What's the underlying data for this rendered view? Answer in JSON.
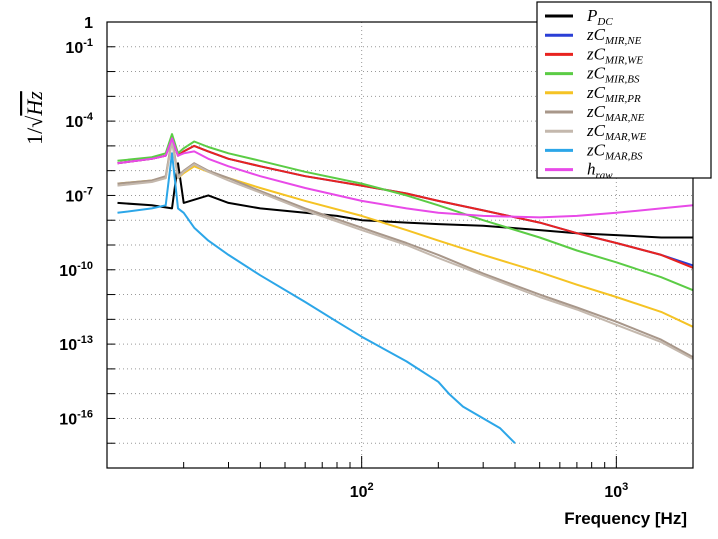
{
  "chart_data": {
    "type": "line",
    "title": "",
    "xlabel": "Frequency [Hz]",
    "ylabel": "1/√Hz",
    "x_scale": "log",
    "y_scale": "log",
    "xlim": [
      10,
      2000
    ],
    "ylim": [
      1e-18,
      1
    ],
    "grid": true,
    "legend_position": "top-right",
    "x_ticks": [
      {
        "value": 100,
        "base": "10",
        "exp": "2"
      },
      {
        "value": 1000,
        "base": "10",
        "exp": "3"
      }
    ],
    "y_ticks": [
      {
        "value": 1,
        "base": "1",
        "exp": ""
      },
      {
        "value": 0.1,
        "base": "10",
        "exp": "-1"
      },
      {
        "value": 0.0001,
        "base": "10",
        "exp": "-4"
      },
      {
        "value": 1e-07,
        "base": "10",
        "exp": "-7"
      },
      {
        "value": 1e-10,
        "base": "10",
        "exp": "-10"
      },
      {
        "value": 1e-13,
        "base": "10",
        "exp": "-13"
      },
      {
        "value": 1e-16,
        "base": "10",
        "exp": "-16"
      }
    ],
    "series": [
      {
        "name": "P_DC",
        "label_main": "P",
        "label_sub": "DC",
        "prefix": "",
        "color": "#000000",
        "x": [
          11,
          15,
          18,
          19,
          20,
          25,
          30,
          40,
          60,
          80,
          100,
          150,
          200,
          300,
          500,
          700,
          1000,
          1500,
          2000
        ],
        "y": [
          5e-08,
          4e-08,
          3e-08,
          2e-06,
          5e-08,
          1e-07,
          5e-08,
          3e-08,
          2e-08,
          1.5e-08,
          1e-08,
          8e-09,
          7e-09,
          6e-09,
          4e-09,
          3e-09,
          2.5e-09,
          2e-09,
          2e-09
        ]
      },
      {
        "name": "zC_MIR,NE",
        "label_main": "C",
        "label_sub": "MIR,NE",
        "prefix": "z",
        "color": "#2a3fd6",
        "x": [
          11,
          15,
          17,
          18,
          19,
          20,
          22,
          25,
          30,
          40,
          60,
          100,
          150,
          200,
          300,
          500,
          700,
          1000,
          1500,
          2000
        ],
        "y": [
          2e-06,
          3e-06,
          4e-06,
          2e-05,
          4e-06,
          6e-06,
          1e-05,
          6e-06,
          3e-06,
          1.5e-06,
          6e-07,
          2.5e-07,
          1.2e-07,
          6e-08,
          2.5e-08,
          8e-09,
          3e-09,
          1.2e-09,
          4e-10,
          1.5e-10
        ]
      },
      {
        "name": "zC_MIR,WE",
        "label_main": "C",
        "label_sub": "MIR,WE",
        "prefix": "z",
        "color": "#e8231f",
        "x": [
          11,
          15,
          17,
          18,
          19,
          20,
          22,
          25,
          30,
          40,
          60,
          100,
          150,
          200,
          300,
          500,
          700,
          1000,
          1500,
          2000
        ],
        "y": [
          2e-06,
          3e-06,
          4e-06,
          2e-05,
          4e-06,
          6e-06,
          1e-05,
          6e-06,
          3e-06,
          1.5e-06,
          6e-07,
          2.5e-07,
          1.2e-07,
          6e-08,
          2.5e-08,
          8e-09,
          3e-09,
          1.2e-09,
          4e-10,
          1.2e-10
        ]
      },
      {
        "name": "zC_MIR,BS",
        "label_main": "C",
        "label_sub": "MIR,BS",
        "prefix": "z",
        "color": "#5bcc45",
        "x": [
          11,
          15,
          17,
          18,
          19,
          20,
          22,
          25,
          30,
          40,
          60,
          100,
          150,
          200,
          300,
          500,
          700,
          1000,
          1500,
          2000
        ],
        "y": [
          2.5e-06,
          3.5e-06,
          5e-06,
          3e-05,
          5e-06,
          8e-06,
          1.5e-05,
          9e-06,
          5e-06,
          2.5e-06,
          9e-07,
          3e-07,
          1e-07,
          4e-08,
          1e-08,
          2e-09,
          6e-10,
          2e-10,
          5e-11,
          1.5e-11
        ]
      },
      {
        "name": "zC_MIR,PR",
        "label_main": "C",
        "label_sub": "MIR,PR",
        "prefix": "z",
        "color": "#f5c324",
        "x": [
          11,
          15,
          17,
          18,
          19,
          20,
          22,
          25,
          30,
          40,
          60,
          100,
          150,
          200,
          300,
          500,
          700,
          1000,
          1500,
          2000
        ],
        "y": [
          3e-07,
          4e-07,
          5e-07,
          2e-05,
          5e-07,
          8e-07,
          1.5e-06,
          9e-07,
          5e-07,
          2e-07,
          6e-08,
          1.5e-08,
          4e-09,
          1.5e-09,
          4e-10,
          8e-11,
          2.5e-11,
          8e-12,
          2e-12,
          5e-13
        ]
      },
      {
        "name": "zC_MAR,NE",
        "label_main": "C",
        "label_sub": "MAR,NE",
        "prefix": "z",
        "color": "#a8978a",
        "x": [
          11,
          15,
          17,
          18,
          19,
          20,
          22,
          25,
          30,
          40,
          60,
          100,
          150,
          200,
          300,
          500,
          700,
          1000,
          1500,
          2000
        ],
        "y": [
          3e-07,
          4e-07,
          6e-07,
          2e-05,
          6e-07,
          1e-06,
          2e-06,
          1e-06,
          5e-07,
          1.5e-07,
          3e-08,
          5e-09,
          1.2e-09,
          4e-10,
          7e-11,
          1e-11,
          3e-12,
          8e-13,
          1.5e-13,
          3e-14
        ]
      },
      {
        "name": "zC_MAR,WE",
        "label_main": "C",
        "label_sub": "MAR,WE",
        "prefix": "z",
        "color": "#c4b8ad",
        "x": [
          11,
          15,
          17,
          18,
          19,
          20,
          22,
          25,
          30,
          40,
          60,
          100,
          150,
          200,
          300,
          500,
          700,
          1000,
          1500,
          2000
        ],
        "y": [
          2.5e-07,
          3.5e-07,
          5e-07,
          1.5e-05,
          5e-07,
          9e-07,
          1.8e-06,
          9e-07,
          4e-07,
          1.3e-07,
          2.5e-08,
          4e-09,
          1e-09,
          3e-10,
          6e-11,
          8e-12,
          2.5e-12,
          6e-13,
          1.2e-13,
          2.5e-14
        ]
      },
      {
        "name": "zC_MAR,BS",
        "label_main": "C",
        "label_sub": "MAR,BS",
        "prefix": "z",
        "color": "#2ca6e8",
        "x": [
          11,
          15,
          17,
          18,
          19,
          20,
          22,
          25,
          30,
          40,
          60,
          80,
          100,
          150,
          200,
          220,
          250,
          300,
          350,
          400
        ],
        "y": [
          2e-08,
          3e-08,
          4e-08,
          5e-06,
          3e-08,
          2e-08,
          5e-09,
          1.5e-09,
          4e-10,
          6e-11,
          5e-12,
          8e-13,
          2e-13,
          2e-14,
          3e-15,
          1e-15,
          3e-16,
          1e-16,
          4e-17,
          1e-17
        ]
      },
      {
        "name": "h_raw",
        "label_main": "h",
        "label_sub": "raw",
        "prefix": "",
        "color": "#e84ae8",
        "x": [
          11,
          15,
          17,
          18,
          19,
          20,
          22,
          25,
          30,
          40,
          60,
          100,
          150,
          200,
          300,
          500,
          700,
          1000,
          1500,
          2000
        ],
        "y": [
          2e-06,
          3e-06,
          4e-06,
          2e-05,
          4e-06,
          5e-06,
          6e-06,
          3e-06,
          1.5e-06,
          6e-07,
          2e-07,
          6e-08,
          3e-08,
          2e-08,
          1.5e-08,
          1.3e-08,
          1.5e-08,
          2e-08,
          3e-08,
          4e-08
        ]
      }
    ],
    "annotations": []
  }
}
